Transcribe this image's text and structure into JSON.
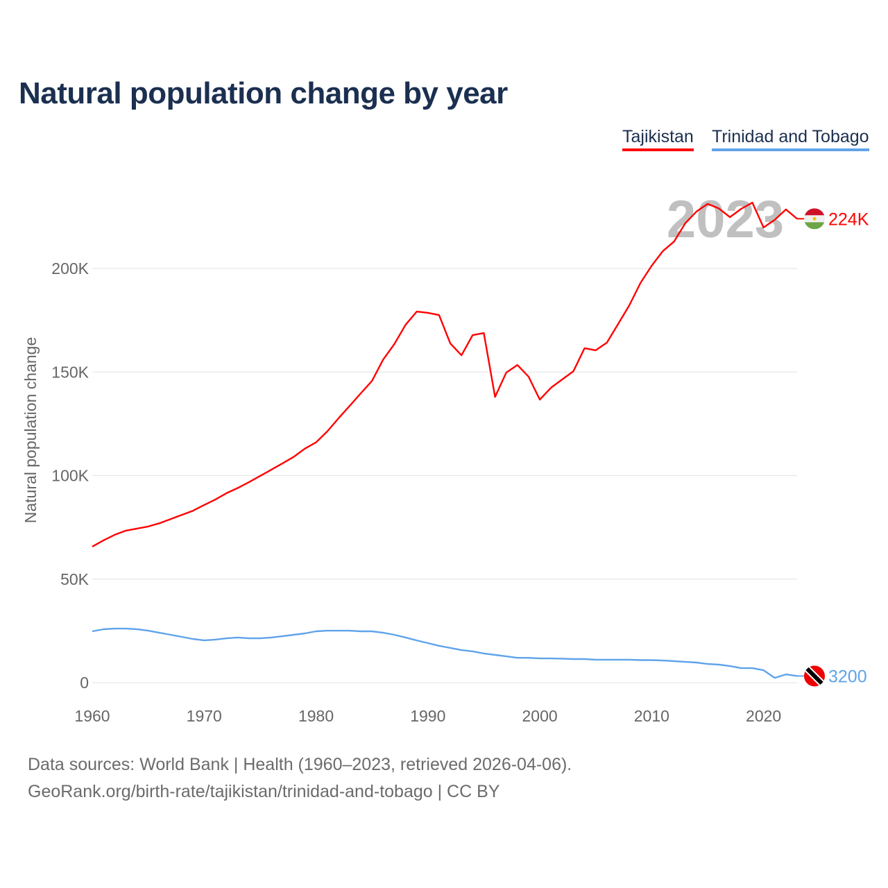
{
  "chart_data": {
    "type": "line",
    "title": "Natural population change by year",
    "xlabel": "",
    "ylabel": "Natural population change",
    "xlim": [
      1960,
      2023
    ],
    "ylim": [
      0,
      240000
    ],
    "x_ticks": [
      1960,
      1970,
      1980,
      1990,
      2000,
      2010,
      2020
    ],
    "x_tick_labels": [
      "1960",
      "1970",
      "1980",
      "1990",
      "2000",
      "2010",
      "2020"
    ],
    "y_ticks": [
      0,
      50000,
      100000,
      150000,
      200000
    ],
    "y_tick_labels": [
      "0",
      "50K",
      "100K",
      "150K",
      "200K"
    ],
    "grid": true,
    "legend_position": "top-right",
    "year_watermark": "2023",
    "x": [
      1960,
      1961,
      1962,
      1963,
      1964,
      1965,
      1966,
      1967,
      1968,
      1969,
      1970,
      1971,
      1972,
      1973,
      1974,
      1975,
      1976,
      1977,
      1978,
      1979,
      1980,
      1981,
      1982,
      1983,
      1984,
      1985,
      1986,
      1987,
      1988,
      1989,
      1990,
      1991,
      1992,
      1993,
      1994,
      1995,
      1996,
      1997,
      1998,
      1999,
      2000,
      2001,
      2002,
      2003,
      2004,
      2005,
      2006,
      2007,
      2008,
      2009,
      2010,
      2011,
      2012,
      2013,
      2014,
      2015,
      2016,
      2017,
      2018,
      2019,
      2020,
      2021,
      2022,
      2023
    ],
    "series": [
      {
        "name": "Tajikistan",
        "color": "#ff0000",
        "end_label": "224K",
        "values": [
          65700,
          68700,
          71400,
          73400,
          74400,
          75400,
          77000,
          79000,
          81000,
          83000,
          85800,
          88400,
          91500,
          94000,
          96800,
          99800,
          102800,
          105900,
          109000,
          113000,
          116000,
          121300,
          127600,
          133600,
          139700,
          145700,
          156000,
          163500,
          172800,
          179200,
          178600,
          177500,
          163800,
          158100,
          167800,
          168800,
          138000,
          149700,
          153400,
          147700,
          136700,
          142400,
          146400,
          150400,
          161500,
          160500,
          164200,
          173200,
          182200,
          193000,
          201300,
          208400,
          213000,
          221800,
          227500,
          231200,
          229000,
          224800,
          228800,
          231800,
          219800,
          223500,
          228500,
          224000
        ]
      },
      {
        "name": "Trinidad and Tobago",
        "color": "#5fa3ea",
        "end_label": "3200",
        "values": [
          24800,
          25800,
          26100,
          26100,
          25800,
          25100,
          24100,
          23100,
          22100,
          21100,
          20400,
          20800,
          21400,
          21800,
          21400,
          21400,
          21800,
          22400,
          23100,
          23800,
          24800,
          25100,
          25100,
          25100,
          24800,
          24800,
          24100,
          23100,
          21800,
          20400,
          19100,
          17800,
          16800,
          15700,
          15100,
          14100,
          13400,
          12700,
          12000,
          12000,
          11700,
          11700,
          11600,
          11400,
          11400,
          11100,
          11100,
          11100,
          11100,
          10900,
          10900,
          10700,
          10400,
          10000,
          9700,
          9000,
          8700,
          8000,
          7000,
          7000,
          6000,
          2300,
          4000,
          3200
        ]
      }
    ]
  },
  "footer": {
    "line1": "Data sources: World Bank | Health (1960–2023, retrieved 2026-04-06).",
    "line2": "GeoRank.org/birth-rate/tajikistan/trinidad-and-tobago | CC BY"
  }
}
